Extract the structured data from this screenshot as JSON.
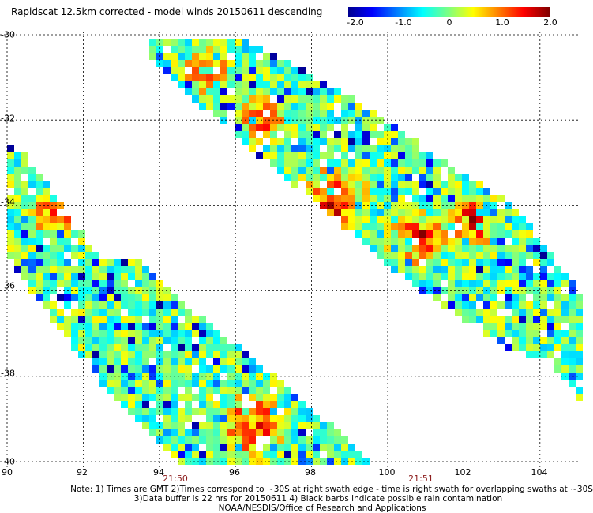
{
  "title": "Rapidscat 12.5km corrected - model winds 20150611 descending",
  "colorbar": {
    "ticks": [
      "-2.0",
      "-1.0",
      "0",
      "1.0",
      "2.0"
    ],
    "min": -2.0,
    "max": 2.0
  },
  "map": {
    "lon_range": [
      90,
      105
    ],
    "lat_range": [
      -40,
      -30
    ],
    "lat_labels": [
      "-30",
      "-32",
      "-34",
      "-36",
      "-38",
      "-40"
    ],
    "lon_labels": [
      "90",
      "92",
      "94",
      "96",
      "98",
      "100",
      "102",
      "104"
    ],
    "swath_times": [
      "21:50",
      "21:51"
    ]
  },
  "notes": {
    "line1": "Note: 1) Times are GMT 2)Times correspond to ~30S at right swath edge - time is right swath for overlapping swaths at ~30S",
    "line2": "3)Data buffer is 22 hrs for 20150611 4) Black barbs indicate possible rain contamination",
    "line3": "NOAA/NESDIS/Office of Research and Applications"
  },
  "colors": {
    "grid": "#000000",
    "time_label": "#8b1a1a"
  }
}
